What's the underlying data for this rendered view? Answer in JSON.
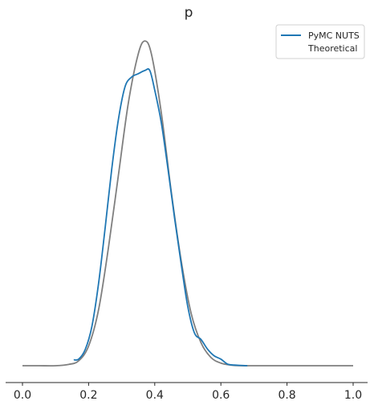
{
  "chart_data": {
    "type": "line",
    "title": "p",
    "xlabel": "",
    "ylabel": "",
    "xlim": [
      -0.05,
      1.05
    ],
    "ylim": [
      0,
      1.0
    ],
    "xticks": [
      0.0,
      0.2,
      0.4,
      0.6,
      0.8,
      1.0
    ],
    "xtick_labels": [
      "0.0",
      "0.2",
      "0.4",
      "0.6",
      "0.8",
      "1.0"
    ],
    "grid": false,
    "legend_position": "top-right",
    "series": [
      {
        "name": "PyMC NUTS",
        "color": "#1f77b4",
        "x": [
          0.155,
          0.17,
          0.19,
          0.21,
          0.23,
          0.25,
          0.27,
          0.29,
          0.31,
          0.33,
          0.35,
          0.37,
          0.385,
          0.4,
          0.42,
          0.44,
          0.46,
          0.48,
          0.5,
          0.52,
          0.54,
          0.56,
          0.58,
          0.6,
          0.62,
          0.64,
          0.66,
          0.68
        ],
        "y": [
          0.018,
          0.02,
          0.05,
          0.12,
          0.25,
          0.42,
          0.6,
          0.75,
          0.85,
          0.88,
          0.89,
          0.9,
          0.9,
          0.84,
          0.74,
          0.6,
          0.45,
          0.31,
          0.18,
          0.1,
          0.08,
          0.05,
          0.03,
          0.02,
          0.005,
          0.002,
          0.001,
          0.0
        ]
      },
      {
        "name": "Theoretical",
        "color": "#7f7f7f",
        "x": [
          0.0,
          0.05,
          0.1,
          0.14,
          0.17,
          0.2,
          0.23,
          0.26,
          0.29,
          0.32,
          0.35,
          0.37,
          0.39,
          0.42,
          0.45,
          0.48,
          0.51,
          0.54,
          0.57,
          0.6,
          0.63,
          0.66,
          0.7,
          0.75,
          0.8,
          0.9,
          1.0
        ],
        "y": [
          0.0,
          0.0,
          0.0,
          0.004,
          0.015,
          0.06,
          0.17,
          0.36,
          0.58,
          0.8,
          0.95,
          0.99,
          0.95,
          0.77,
          0.53,
          0.32,
          0.16,
          0.07,
          0.025,
          0.008,
          0.002,
          0.0,
          0.0,
          0.0,
          0.0,
          0.0,
          0.0
        ]
      }
    ]
  }
}
